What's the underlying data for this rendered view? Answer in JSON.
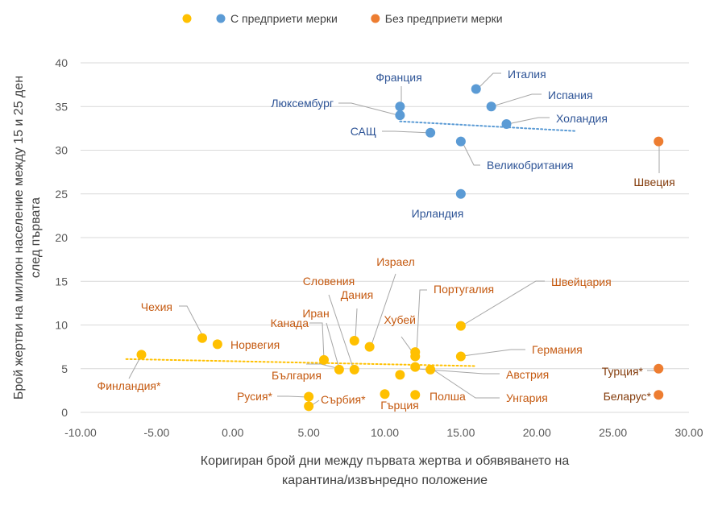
{
  "chart_data": {
    "type": "scatter",
    "xlabel_lines": [
      "Коригиран брой дни между първата жертва и обявяването на",
      "карантина/извънредно положение"
    ],
    "ylabel_lines": [
      "Брой жертви на милион население между 15 и 25 ден",
      "след първата"
    ],
    "xlim": [
      -10,
      30
    ],
    "ylim": [
      0,
      40
    ],
    "x_ticks": [
      -10,
      -5,
      0,
      5,
      10,
      15,
      20,
      25,
      30
    ],
    "x_tick_labels": [
      "-10.00",
      "-5.00",
      "0.00",
      "5.00",
      "10.00",
      "15.00",
      "20.00",
      "25.00",
      "30.00"
    ],
    "y_ticks": [
      0,
      5,
      10,
      15,
      20,
      25,
      30,
      35,
      40
    ],
    "y_tick_labels": [
      "0",
      "5",
      "10",
      "15",
      "20",
      "25",
      "30",
      "35",
      "40"
    ],
    "grid": true,
    "legend_position": "top",
    "series": [
      {
        "name": "",
        "color": "#FFC000",
        "label_color": "#C55A11",
        "trendline": {
          "x": [
            -7,
            16
          ],
          "y": [
            6.1,
            5.3
          ]
        },
        "points": [
          {
            "label": "Финландия*",
            "x": -6,
            "y": 6.6
          },
          {
            "label": "Чехия",
            "x": -2,
            "y": 8.5
          },
          {
            "label": "Норвегия",
            "x": -1,
            "y": 7.8
          },
          {
            "label": "Русия*",
            "x": 5,
            "y": 1.8
          },
          {
            "label": "Сърбия*",
            "x": 5,
            "y": 0.7
          },
          {
            "label": "Канада",
            "x": 6,
            "y": 6.0
          },
          {
            "label": "България",
            "x": 7,
            "y": 4.9
          },
          {
            "label": "Иран",
            "x": 8,
            "y": 4.9
          },
          {
            "label": "Словения",
            "x": 8,
            "y": 8.2
          },
          {
            "label": "Дания",
            "x": 9,
            "y": 7.5
          },
          {
            "label": "Гърция",
            "x": 10,
            "y": 2.1
          },
          {
            "label": "Израел",
            "x": 11,
            "y": 4.3
          },
          {
            "label": "Полша",
            "x": 12,
            "y": 2.0
          },
          {
            "label": "Португалия",
            "x": 12,
            "y": 6.4
          },
          {
            "label": "Хубей",
            "x": 12,
            "y": 6.9
          },
          {
            "label": "Австрия",
            "x": 12,
            "y": 5.2
          },
          {
            "label": "Унгария",
            "x": 13,
            "y": 4.9
          },
          {
            "label": "Швейцария",
            "x": 15,
            "y": 9.9
          },
          {
            "label": "Германия",
            "x": 15,
            "y": 6.4
          }
        ]
      },
      {
        "name": "С предприети мерки",
        "color": "#5B9BD5",
        "label_color": "#2F5597",
        "trendline": {
          "x": [
            11,
            22.5
          ],
          "y": [
            33.3,
            32.2
          ]
        },
        "points": [
          {
            "label": "Франция",
            "x": 11,
            "y": 35.0
          },
          {
            "label": "Люксембург",
            "x": 11,
            "y": 34.0
          },
          {
            "label": "САЩ",
            "x": 13,
            "y": 32.0
          },
          {
            "label": "Великобритания",
            "x": 15,
            "y": 31.0
          },
          {
            "label": "Ирландия",
            "x": 15,
            "y": 25.0
          },
          {
            "label": "Италия",
            "x": 16,
            "y": 37.0
          },
          {
            "label": "Испания",
            "x": 17,
            "y": 35.0
          },
          {
            "label": "Холандия",
            "x": 18,
            "y": 33.0
          }
        ]
      },
      {
        "name": "Без предприети мерки",
        "color": "#ED7D31",
        "label_color": "#843C0C",
        "points": [
          {
            "label": "Швеция",
            "x": 28,
            "y": 31.0
          },
          {
            "label": "Турция*",
            "x": 28,
            "y": 5.0
          },
          {
            "label": "Беларус*",
            "x": 28,
            "y": 2.0
          }
        ]
      }
    ]
  }
}
